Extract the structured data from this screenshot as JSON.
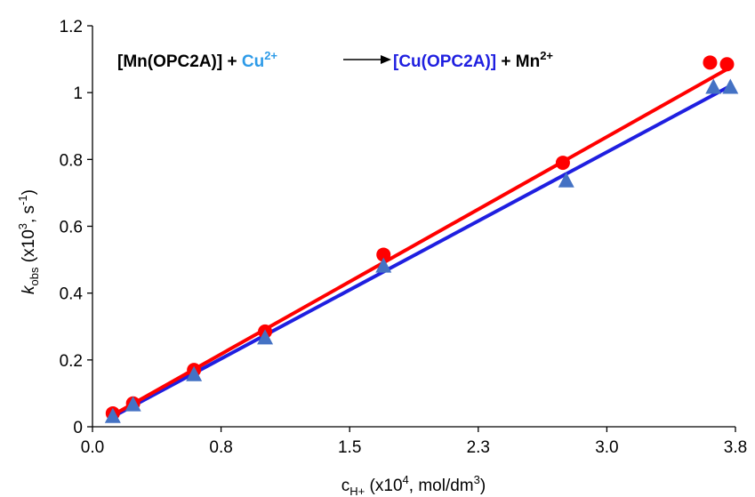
{
  "chart_data": {
    "type": "scatter",
    "xlim": [
      0,
      3.8
    ],
    "ylim": [
      0,
      1.2
    ],
    "x_ticks": [
      "0.0",
      "0.8",
      "1.5",
      "2.3",
      "3.0",
      "3.8"
    ],
    "x_tick_values": [
      0.0,
      0.76,
      1.52,
      2.28,
      3.04,
      3.8
    ],
    "y_ticks": [
      "0",
      "0.2",
      "0.4",
      "0.6",
      "0.8",
      "1",
      "1.2"
    ],
    "y_tick_values": [
      0,
      0.2,
      0.4,
      0.6,
      0.8,
      1.0,
      1.2
    ],
    "xlabel": {
      "main": "c",
      "sub": "H+",
      "rest": " (x10",
      "sup": "4",
      "rest2": ", mol/dm",
      "sup2": "3",
      "end": ")"
    },
    "ylabel": {
      "main": "k",
      "sub": "obs",
      "rest": " (x10",
      "sup": "3",
      "rest2": ", s",
      "sup2": "-1",
      "end": ")"
    },
    "annotation": {
      "p1": "[Mn(OPC2A)] + ",
      "p2": "Cu",
      "p2sup": "2+",
      "p3": "[Cu(OPC2A)]",
      "p4": " + Mn",
      "p4sup": "2+"
    },
    "grid": false,
    "legend": "none",
    "colors": {
      "series1": "#ff0000",
      "series2": "#1f1fe0",
      "series2_marker": "#4472c4",
      "cu_text": "#2e9be8",
      "cu_complex_text": "#1f1fe0"
    },
    "series": [
      {
        "marker": "circle",
        "points": [
          [
            0.12,
            0.04
          ],
          [
            0.24,
            0.07
          ],
          [
            0.6,
            0.17
          ],
          [
            1.02,
            0.285
          ],
          [
            1.72,
            0.515
          ],
          [
            2.78,
            0.79
          ],
          [
            3.65,
            1.09
          ],
          [
            3.75,
            1.085
          ]
        ],
        "fit": [
          [
            0.12,
            0.035
          ],
          [
            3.75,
            1.07
          ]
        ]
      },
      {
        "marker": "triangle",
        "points": [
          [
            0.12,
            0.03
          ],
          [
            0.24,
            0.065
          ],
          [
            0.6,
            0.155
          ],
          [
            1.02,
            0.265
          ],
          [
            1.72,
            0.48
          ],
          [
            2.8,
            0.735
          ],
          [
            3.67,
            1.015
          ],
          [
            3.77,
            1.015
          ]
        ],
        "fit": [
          [
            0.12,
            0.03
          ],
          [
            3.77,
            1.02
          ]
        ]
      }
    ]
  }
}
